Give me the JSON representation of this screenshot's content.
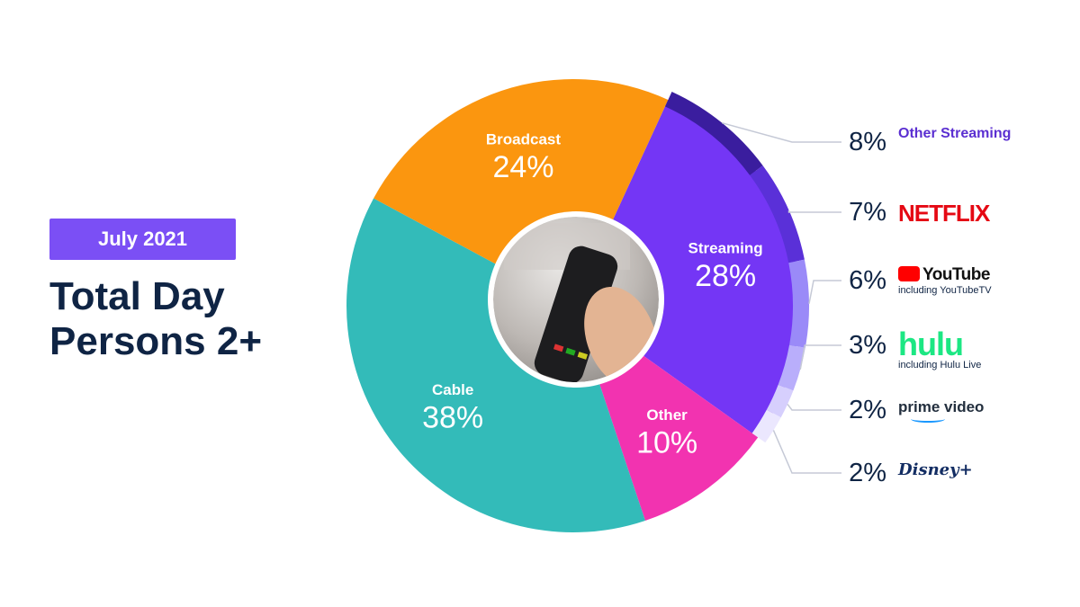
{
  "badge": "July 2021",
  "title_lines": [
    "Total Day",
    "Persons 2+"
  ],
  "chart_data": {
    "type": "pie",
    "categories": [
      "Streaming",
      "Other",
      "Cable",
      "Broadcast"
    ],
    "values": [
      28,
      10,
      38,
      24
    ],
    "value_labels": [
      "28%",
      "10%",
      "38%",
      "24%"
    ],
    "colors": [
      "#7436f5",
      "#f233b0",
      "#33bbb9",
      "#fb960f"
    ],
    "breakdown": {
      "names": [
        "Other Streaming",
        "NETFLIX",
        "YouTube",
        "hulu",
        "prime video",
        "Disney+"
      ],
      "notes": [
        null,
        null,
        "including YouTubeTV",
        "including Hulu Live",
        null,
        null
      ],
      "values": [
        8,
        7,
        6,
        3,
        2,
        2
      ],
      "value_labels": [
        "8%",
        "7%",
        "6%",
        "3%",
        "2%",
        "2%"
      ],
      "colors": [
        "#3a1d9e",
        "#5a30d8",
        "#9a8af8",
        "#b9aefb",
        "#d6cffd",
        "#ebe7fe"
      ]
    }
  }
}
